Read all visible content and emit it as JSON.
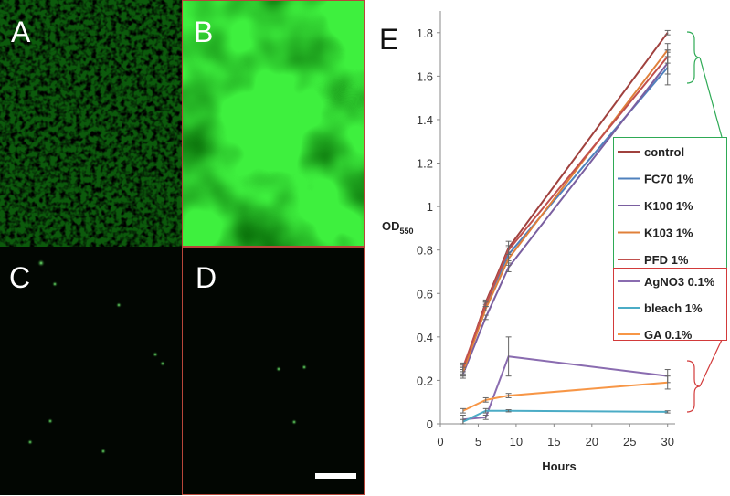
{
  "panels": [
    "A",
    "B",
    "C",
    "D"
  ],
  "chart_data": {
    "type": "line",
    "panel_label": "E",
    "x_label": "Hours",
    "y_label": "OD",
    "y_label_sub": "550",
    "xlim": [
      0,
      31
    ],
    "xticks": [
      0,
      5,
      10,
      15,
      20,
      25,
      30
    ],
    "ylim": [
      0,
      1.9
    ],
    "yticks": [
      0,
      0.2,
      0.4,
      0.6,
      0.8,
      1,
      1.2,
      1.4,
      1.6,
      1.8
    ],
    "x": [
      3,
      6,
      9,
      30
    ],
    "series": [
      {
        "name": "control",
        "color": "#a0413e",
        "values": [
          0.25,
          0.56,
          0.81,
          1.8
        ],
        "errors": [
          0.02,
          0.01,
          0.03,
          0.01
        ]
      },
      {
        "name": "FC70 1%",
        "color": "#4f81bd",
        "values": [
          0.24,
          0.55,
          0.78,
          1.64
        ],
        "errors": [
          0.02,
          0.01,
          0.03,
          0.08
        ]
      },
      {
        "name": "K100 1%",
        "color": "#7a5fa0",
        "values": [
          0.23,
          0.49,
          0.72,
          1.66
        ],
        "errors": [
          0.02,
          0.01,
          0.02,
          0.05
        ]
      },
      {
        "name": "K103 1%",
        "color": "#e0803a",
        "values": [
          0.24,
          0.53,
          0.76,
          1.72
        ],
        "errors": [
          0.02,
          0.01,
          0.03,
          0.03
        ]
      },
      {
        "name": "PFD 1%",
        "color": "#c0504d",
        "values": [
          0.26,
          0.55,
          0.8,
          1.69
        ],
        "errors": [
          0.02,
          0.01,
          0.02,
          0.03
        ]
      },
      {
        "name": "AgNO3 0.1%",
        "color": "#8a6cb0",
        "values": [
          0.02,
          0.03,
          0.31,
          0.22
        ],
        "errors": [
          0.02,
          0.01,
          0.09,
          0.03
        ]
      },
      {
        "name": "bleach 1%",
        "color": "#4bacc6",
        "values": [
          0.01,
          0.06,
          0.06,
          0.055
        ],
        "errors": [
          0.01,
          0.01,
          0.005,
          0.005
        ]
      },
      {
        "name": "GA 0.1%",
        "color": "#f79646",
        "values": [
          0.06,
          0.11,
          0.13,
          0.19
        ],
        "errors": [
          0.01,
          0.01,
          0.01,
          0.03
        ]
      }
    ]
  }
}
